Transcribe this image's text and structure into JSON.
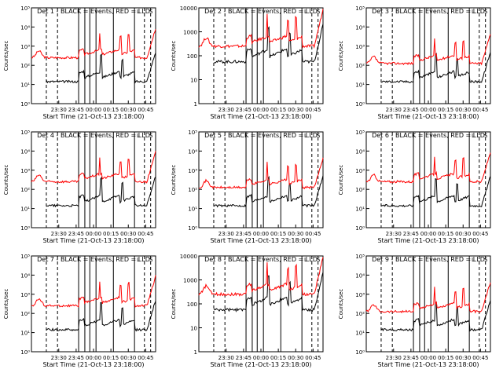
{
  "figure": {
    "xlabel": "Start Time (21-Oct-13 23:18:00)",
    "ylabel": "Counts/sec",
    "legend_text": "BLACK = Events, RED = LLD",
    "series_colors": {
      "events": "#000000",
      "lld": "#ff0000"
    },
    "marker_labels": [
      "L",
      "S"
    ]
  },
  "chart_data": [
    {
      "type": "line",
      "title": "Det 1",
      "x_ticks": [
        "23:30",
        "23:45",
        "00:00",
        "00:15",
        "00:30",
        "00:45"
      ],
      "y_scale": "log",
      "y_ticks": [
        "10⁰",
        "10¹",
        "10²",
        "10³",
        "10⁴",
        "10⁵"
      ],
      "ylim": [
        1,
        100000
      ],
      "lld_level": "high",
      "events_level": "low"
    },
    {
      "type": "line",
      "title": "Det 2",
      "x_ticks": [
        "23:30",
        "23:45",
        "00:00",
        "00:15",
        "00:30",
        "00:45"
      ],
      "y_scale": "log",
      "y_ticks": [
        "1",
        "10",
        "100",
        "1000",
        "10000"
      ],
      "ylim": [
        1,
        10000
      ],
      "lld_level": "high",
      "events_level": "mid"
    },
    {
      "type": "line",
      "title": "Det 3",
      "x_ticks": [
        "23:30",
        "23:45",
        "00:00",
        "00:15",
        "00:30",
        "00:45"
      ],
      "y_scale": "log",
      "y_ticks": [
        "10⁰",
        "10¹",
        "10²",
        "10³",
        "10⁴",
        "10⁵"
      ],
      "ylim": [
        1,
        100000
      ],
      "lld_level": "mid",
      "events_level": "low"
    },
    {
      "type": "line",
      "title": "Det 4",
      "x_ticks": [
        "23:30",
        "23:45",
        "00:00",
        "00:15",
        "00:30",
        "00:45"
      ],
      "y_scale": "log",
      "y_ticks": [
        "10⁰",
        "10¹",
        "10²",
        "10³",
        "10⁴",
        "10⁵"
      ],
      "ylim": [
        1,
        100000
      ],
      "lld_level": "high",
      "events_level": "low"
    },
    {
      "type": "line",
      "title": "Det 5",
      "x_ticks": [
        "23:30",
        "23:45",
        "00:00",
        "00:15",
        "00:30",
        "00:45"
      ],
      "y_scale": "log",
      "y_ticks": [
        "10⁰",
        "10¹",
        "10²",
        "10³",
        "10⁴",
        "10⁵"
      ],
      "ylim": [
        1,
        100000
      ],
      "lld_level": "mid",
      "events_level": "low"
    },
    {
      "type": "line",
      "title": "Det 6",
      "x_ticks": [
        "23:30",
        "23:45",
        "00:00",
        "00:15",
        "00:30",
        "00:45"
      ],
      "y_scale": "log",
      "y_ticks": [
        "10⁰",
        "10¹",
        "10²",
        "10³",
        "10⁴",
        "10⁵"
      ],
      "ylim": [
        1,
        100000
      ],
      "lld_level": "high",
      "events_level": "low"
    },
    {
      "type": "line",
      "title": "Det 7",
      "x_ticks": [
        "23:30",
        "23:45",
        "00:00",
        "00:15",
        "00:30",
        "00:45"
      ],
      "y_scale": "log",
      "y_ticks": [
        "10⁰",
        "10¹",
        "10²",
        "10³",
        "10⁴",
        "10⁵"
      ],
      "ylim": [
        1,
        100000
      ],
      "lld_level": "high",
      "events_level": "low"
    },
    {
      "type": "line",
      "title": "Det 8",
      "x_ticks": [
        "23:30",
        "23:45",
        "00:00",
        "00:15",
        "00:30",
        "00:45"
      ],
      "y_scale": "log",
      "y_ticks": [
        "1",
        "10",
        "100",
        "1000",
        "10000"
      ],
      "ylim": [
        1,
        10000
      ],
      "lld_level": "high",
      "events_level": "mid"
    },
    {
      "type": "line",
      "title": "Det 9",
      "x_ticks": [
        "23:30",
        "23:45",
        "00:00",
        "00:15",
        "00:30",
        "00:45"
      ],
      "y_scale": "log",
      "y_ticks": [
        "10⁰",
        "10¹",
        "10²",
        "10³",
        "10⁴",
        "10⁵"
      ],
      "ylim": [
        1,
        100000
      ],
      "lld_level": "mid",
      "events_level": "low"
    }
  ]
}
